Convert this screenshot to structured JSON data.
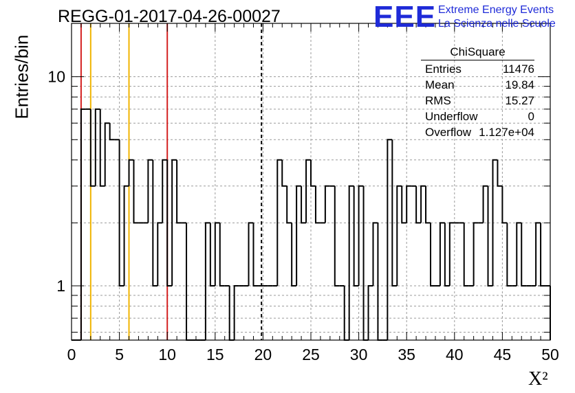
{
  "title": "REGG-01-2017-04-26-00027",
  "logo": {
    "mark": "EEE",
    "line1": "Extreme Energy Events",
    "line2": "La Scienza nelle Scuole"
  },
  "stats": {
    "title": "ChiSquare",
    "rows": [
      {
        "label": "Entries",
        "value": "11476"
      },
      {
        "label": "Mean",
        "value": "19.84"
      },
      {
        "label": "RMS",
        "value": "15.27"
      },
      {
        "label": "Underflow",
        "value": "0"
      },
      {
        "label": "Overflow",
        "value": "1.127e+04"
      }
    ]
  },
  "colors": {
    "histogram": "#000000",
    "red_line": "#d42020",
    "yellow_line": "#f0b400",
    "mean_line": "#000000",
    "grid": "#9a9a9a"
  },
  "chart_data": {
    "type": "histogram",
    "xlabel": "X²",
    "ylabel": "Entries/bin",
    "xlim": [
      0,
      50
    ],
    "ylim": [
      0.55,
      18
    ],
    "yscale": "log",
    "grid": true,
    "bin_width": 0.5,
    "x_ticks": [
      "0",
      "5",
      "10",
      "15",
      "20",
      "25",
      "30",
      "35",
      "40",
      "45",
      "50"
    ],
    "y_ticks": [
      "1",
      "10"
    ],
    "values": [
      0,
      0,
      7,
      7,
      3,
      7,
      3,
      6,
      5,
      5,
      1,
      3,
      4,
      2,
      2,
      2,
      4,
      1,
      2,
      4,
      1,
      4,
      2,
      2,
      0,
      0,
      0,
      0,
      2,
      1,
      2,
      1,
      1,
      0,
      1,
      1,
      1,
      2,
      1,
      1,
      1,
      1,
      1,
      4,
      3,
      2,
      1,
      3,
      2,
      4,
      3,
      2,
      2,
      3,
      3,
      1,
      1,
      0,
      3,
      1,
      3,
      0,
      1,
      2,
      0,
      0,
      5,
      1,
      3,
      2,
      3,
      3,
      2,
      3,
      2,
      1,
      1,
      2,
      1,
      2,
      2,
      2,
      1,
      1,
      2,
      2,
      3,
      1,
      4,
      3,
      2,
      1,
      1,
      2,
      1,
      1,
      1,
      2,
      1,
      1
    ],
    "vlines": [
      {
        "x": 1,
        "color": "red"
      },
      {
        "x": 10,
        "color": "red"
      },
      {
        "x": 2,
        "color": "yellow"
      },
      {
        "x": 6,
        "color": "yellow"
      },
      {
        "x": 19.84,
        "color": "mean",
        "style": "dashed"
      }
    ]
  }
}
